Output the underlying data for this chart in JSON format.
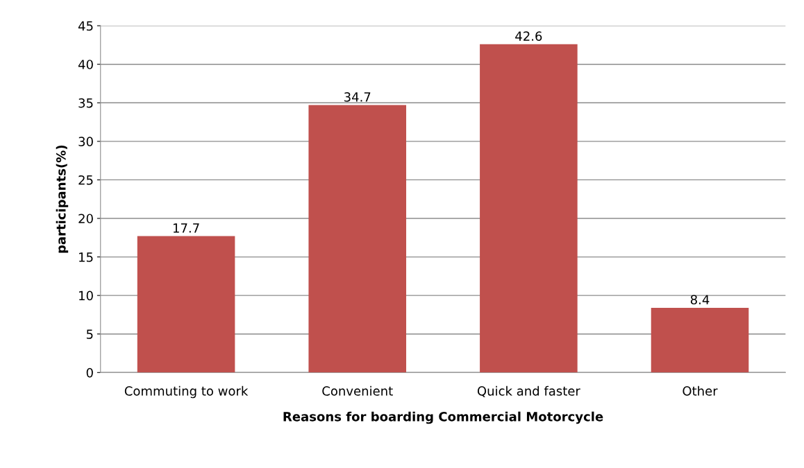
{
  "chart_data": {
    "type": "bar",
    "xlabel": "Reasons for boarding Commercial Motorcycle",
    "ylabel": "participants(%)",
    "categories": [
      "Commuting to work",
      "Convenient",
      "Quick and faster",
      "Other"
    ],
    "values": [
      17.7,
      34.7,
      42.6,
      8.4
    ],
    "color": "#c0504d",
    "ylim": [
      0,
      45
    ],
    "yticks": [
      0,
      5,
      10,
      15,
      20,
      25,
      30,
      35,
      40,
      45
    ],
    "grid": "y",
    "data_labels": true
  }
}
